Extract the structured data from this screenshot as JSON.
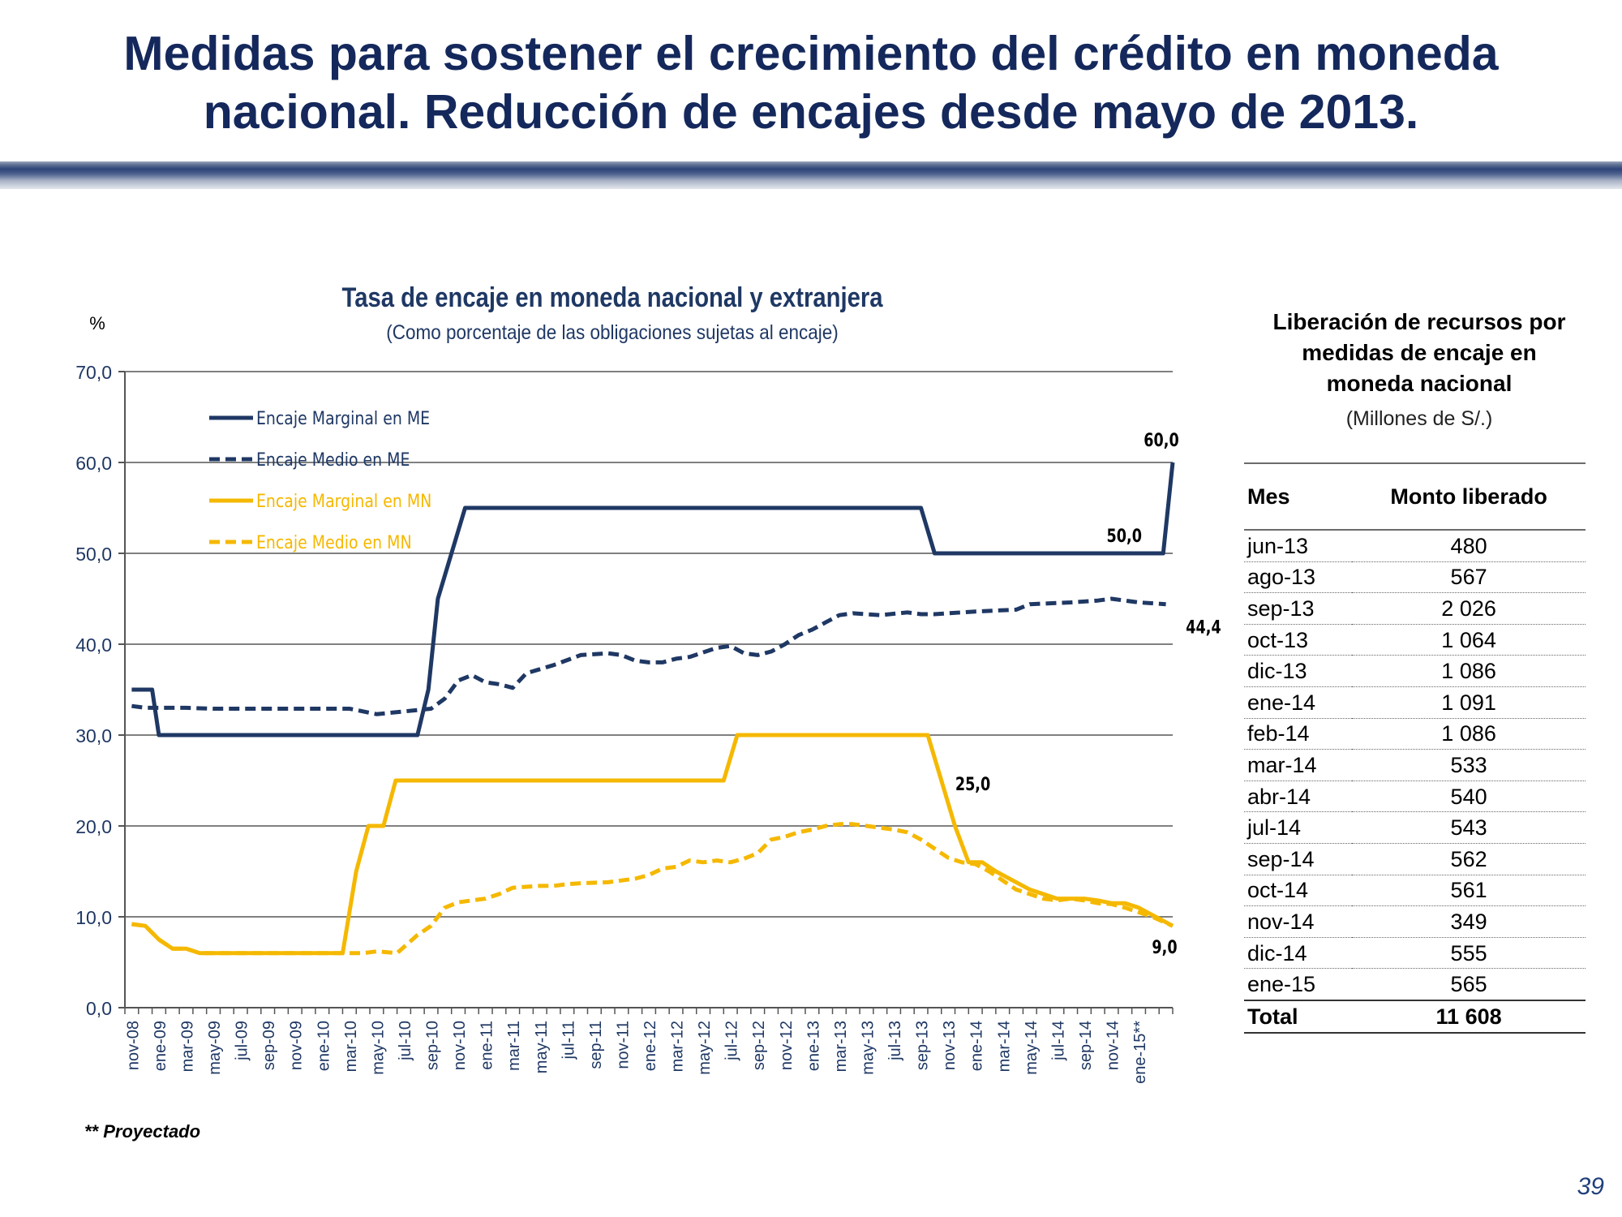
{
  "slide": {
    "title": "Medidas para sostener el crecimiento del crédito en moneda nacional. Reducción de encajes desde mayo de 2013.",
    "footnote": "** Proyectado",
    "page_number": "39"
  },
  "colors": {
    "title": "#14285c",
    "me": "#1f3864",
    "mn": "#f5b800",
    "grid": "#808080"
  },
  "chart_data": {
    "type": "line",
    "title": "Tasa de encaje en moneda nacional y extranjera",
    "subtitle": "(Como  porcentaje de las obligaciones sujetas al encaje)",
    "ylabel": "%",
    "ylim": [
      0,
      70
    ],
    "yticks": [
      "0,0",
      "10,0",
      "20,0",
      "30,0",
      "40,0",
      "50,0",
      "60,0",
      "70,0"
    ],
    "xticks": [
      "nov-08",
      "ene-09",
      "mar-09",
      "may-09",
      "jul-09",
      "sep-09",
      "nov-09",
      "ene-10",
      "mar-10",
      "may-10",
      "jul-10",
      "sep-10",
      "nov-10",
      "ene-11",
      "mar-11",
      "may-11",
      "jul-11",
      "sep-11",
      "nov-11",
      "ene-12",
      "mar-12",
      "may-12",
      "jul-12",
      "sep-12",
      "nov-12",
      "ene-13",
      "mar-13",
      "may-13",
      "jul-13",
      "sep-13",
      "nov-13",
      "ene-14",
      "mar-14",
      "may-14",
      "jul-14",
      "sep-14",
      "nov-14",
      "ene-15**"
    ],
    "grid": true,
    "legend_position": "top-left",
    "series": [
      {
        "name": "Encaje Marginal en ME",
        "style": "solid",
        "color": "#1f3864",
        "points": [
          [
            0,
            35
          ],
          [
            1.5,
            35
          ],
          [
            2,
            30
          ],
          [
            21,
            30
          ],
          [
            21.8,
            35
          ],
          [
            22.5,
            45
          ],
          [
            24.5,
            55
          ],
          [
            58,
            55
          ],
          [
            59,
            50
          ],
          [
            75.8,
            50
          ],
          [
            76.5,
            60
          ]
        ]
      },
      {
        "name": "Encaje Medio en ME",
        "style": "dashed",
        "color": "#1f3864",
        "points": [
          [
            0,
            33.2
          ],
          [
            1,
            33
          ],
          [
            4,
            33
          ],
          [
            6,
            32.9
          ],
          [
            16,
            32.9
          ],
          [
            18,
            32.3
          ],
          [
            20,
            32.6
          ],
          [
            22,
            32.9
          ],
          [
            23,
            34
          ],
          [
            24,
            36
          ],
          [
            25,
            36.6
          ],
          [
            26,
            35.8
          ],
          [
            27,
            35.6
          ],
          [
            28,
            35.2
          ],
          [
            29,
            36.8
          ],
          [
            31,
            37.7
          ],
          [
            33,
            38.8
          ],
          [
            35,
            39
          ],
          [
            36,
            38.8
          ],
          [
            37,
            38.2
          ],
          [
            38,
            38
          ],
          [
            39,
            38
          ],
          [
            40,
            38.4
          ],
          [
            41,
            38.6
          ],
          [
            43,
            39.6
          ],
          [
            44,
            39.8
          ],
          [
            45,
            39
          ],
          [
            46,
            38.8
          ],
          [
            47,
            39.2
          ],
          [
            48,
            40
          ],
          [
            49,
            41
          ],
          [
            50,
            41.6
          ],
          [
            51,
            42.4
          ],
          [
            52,
            43.2
          ],
          [
            53,
            43.4
          ],
          [
            55,
            43.2
          ],
          [
            57,
            43.5
          ],
          [
            58,
            43.3
          ],
          [
            59,
            43.3
          ],
          [
            62,
            43.6
          ],
          [
            65,
            43.8
          ],
          [
            66,
            44.4
          ],
          [
            69,
            44.6
          ],
          [
            71,
            44.8
          ],
          [
            72,
            45
          ],
          [
            74,
            44.6
          ],
          [
            76,
            44.4
          ]
        ]
      },
      {
        "name": "Encaje Marginal en MN",
        "style": "solid",
        "color": "#f5b800",
        "points": [
          [
            0,
            9.2
          ],
          [
            1,
            9
          ],
          [
            2,
            7.5
          ],
          [
            3,
            6.5
          ],
          [
            4,
            6.5
          ],
          [
            5,
            6
          ],
          [
            15.5,
            6
          ],
          [
            16.5,
            15
          ],
          [
            17.4,
            20
          ],
          [
            18.5,
            20
          ],
          [
            19.4,
            25
          ],
          [
            43.5,
            25
          ],
          [
            44.5,
            30
          ],
          [
            58.5,
            30
          ],
          [
            60.5,
            20
          ],
          [
            61.5,
            16
          ],
          [
            62.5,
            16
          ],
          [
            63.5,
            15
          ],
          [
            66,
            13
          ],
          [
            68,
            12
          ],
          [
            70,
            12
          ],
          [
            71,
            11.8
          ],
          [
            72,
            11.5
          ],
          [
            73,
            11.5
          ],
          [
            74,
            11
          ],
          [
            76.5,
            9
          ]
        ]
      },
      {
        "name": "Encaje Medio en MN",
        "style": "dashed",
        "color": "#f5b800",
        "points": [
          [
            0,
            9.2
          ],
          [
            1,
            9
          ],
          [
            2,
            7.5
          ],
          [
            3,
            6.5
          ],
          [
            4,
            6.5
          ],
          [
            5,
            6
          ],
          [
            15.5,
            6
          ],
          [
            17,
            6
          ],
          [
            18,
            6.2
          ],
          [
            19.5,
            6
          ],
          [
            21,
            8
          ],
          [
            22,
            9
          ],
          [
            23,
            11
          ],
          [
            24,
            11.6
          ],
          [
            25,
            11.8
          ],
          [
            26,
            12
          ],
          [
            27,
            12.5
          ],
          [
            28,
            13.2
          ],
          [
            29,
            13.3
          ],
          [
            30,
            13.4
          ],
          [
            31,
            13.4
          ],
          [
            32,
            13.6
          ],
          [
            33,
            13.7
          ],
          [
            35,
            13.8
          ],
          [
            36,
            14
          ],
          [
            37,
            14.2
          ],
          [
            38,
            14.6
          ],
          [
            39,
            15.3
          ],
          [
            40,
            15.5
          ],
          [
            41,
            16.2
          ],
          [
            42,
            16
          ],
          [
            43,
            16.2
          ],
          [
            44,
            16
          ],
          [
            45,
            16.4
          ],
          [
            46,
            17
          ],
          [
            47,
            18.5
          ],
          [
            48,
            18.8
          ],
          [
            49,
            19.3
          ],
          [
            50,
            19.6
          ],
          [
            51,
            20
          ],
          [
            52,
            20.2
          ],
          [
            53,
            20.2
          ],
          [
            54,
            20
          ],
          [
            55,
            19.8
          ],
          [
            56,
            19.6
          ],
          [
            57,
            19.3
          ],
          [
            58,
            18.5
          ],
          [
            59,
            17.5
          ],
          [
            60,
            16.5
          ],
          [
            61,
            16
          ],
          [
            62,
            15.8
          ],
          [
            63,
            15
          ],
          [
            64,
            14
          ],
          [
            65,
            13
          ],
          [
            66,
            12.5
          ],
          [
            67,
            12
          ],
          [
            68,
            11.8
          ],
          [
            69,
            12
          ],
          [
            70,
            11.8
          ],
          [
            71,
            11.5
          ],
          [
            72,
            11.4
          ],
          [
            73,
            11
          ],
          [
            74,
            10.5
          ],
          [
            75,
            10
          ],
          [
            76.5,
            9
          ]
        ]
      }
    ],
    "annotations": [
      {
        "text": "60,0",
        "x": 76.5,
        "y": 60
      },
      {
        "text": "50,0",
        "x": 75.8,
        "y": 50
      },
      {
        "text": "44,4",
        "x": 76.5,
        "y": 44.4
      },
      {
        "text": "25,0",
        "x": 60.5,
        "y": 25
      },
      {
        "text": "9,0",
        "x": 76.5,
        "y": 9
      }
    ]
  },
  "table": {
    "title_lines": [
      "Liberación de recursos por",
      "medidas de encaje en",
      "moneda nacional"
    ],
    "subtitle": "(Millones de S/.)",
    "headers": [
      "Mes",
      "Monto liberado"
    ],
    "rows": [
      {
        "mes": "jun-13",
        "monto": "480"
      },
      {
        "mes": "ago-13",
        "monto": "567"
      },
      {
        "mes": "sep-13",
        "monto": "2 026"
      },
      {
        "mes": "oct-13",
        "monto": "1 064"
      },
      {
        "mes": "dic-13",
        "monto": "1 086"
      },
      {
        "mes": "ene-14",
        "monto": "1 091"
      },
      {
        "mes": "feb-14",
        "monto": "1 086"
      },
      {
        "mes": "mar-14",
        "monto": "533"
      },
      {
        "mes": "abr-14",
        "monto": "540"
      },
      {
        "mes": "jul-14",
        "monto": "543"
      },
      {
        "mes": "sep-14",
        "monto": "562"
      },
      {
        "mes": "oct-14",
        "monto": "561"
      },
      {
        "mes": "nov-14",
        "monto": "349"
      },
      {
        "mes": "dic-14",
        "monto": "555"
      },
      {
        "mes": "ene-15",
        "monto": "565"
      }
    ],
    "total": {
      "label": "Total",
      "monto": "11 608"
    }
  }
}
